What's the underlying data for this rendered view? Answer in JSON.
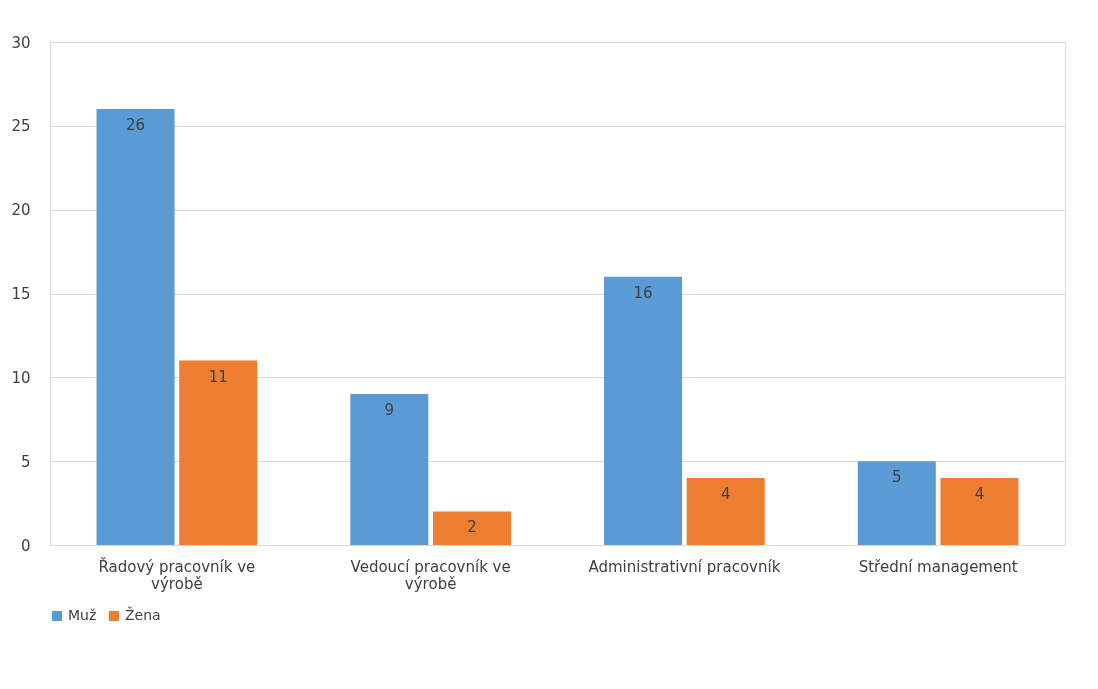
{
  "chart_data": {
    "type": "bar",
    "categories": [
      "Řadový pracovník ve výrobě",
      "Vedoucí pracovník ve výrobě",
      "Administrativní pracovník",
      "Střední management"
    ],
    "series": [
      {
        "name": "Muž",
        "color": "#5b9bd5",
        "values": [
          26,
          9,
          16,
          5
        ]
      },
      {
        "name": "Žena",
        "color": "#ed7d31",
        "values": [
          11,
          2,
          4,
          4
        ]
      }
    ],
    "ylim": [
      0,
      30
    ],
    "yticks": [
      0,
      5,
      10,
      15,
      20,
      25,
      30
    ],
    "grid": "y",
    "legend": "bottom",
    "data_labels": true
  }
}
